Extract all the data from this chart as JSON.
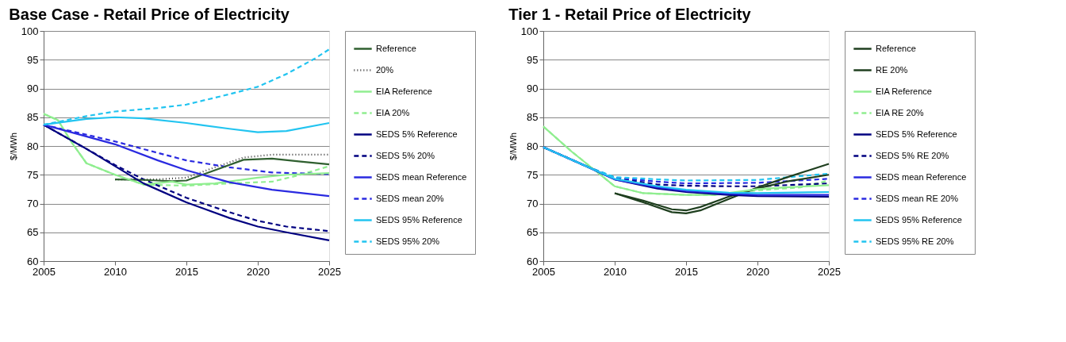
{
  "chart_data": [
    {
      "type": "line",
      "title": "Base Case - Retail Price of Electricity",
      "ylabel": "$/MWh",
      "xlim": [
        2005,
        2025
      ],
      "xticks": [
        2005,
        2010,
        2015,
        2020,
        2025
      ],
      "ylim": [
        60,
        100
      ],
      "yticks": [
        60,
        65,
        70,
        75,
        80,
        85,
        90,
        95,
        100
      ],
      "grid": "y",
      "legend": "right",
      "series": [
        {
          "name": "Reference",
          "color": "#2f5f2f",
          "line_style": "solid",
          "x": [
            2010,
            2012,
            2014,
            2015,
            2017,
            2019,
            2021,
            2023,
            2025
          ],
          "values": [
            74.2,
            74.1,
            73.9,
            74.0,
            75.8,
            77.6,
            77.8,
            77.3,
            76.8
          ]
        },
        {
          "name": "20%",
          "color": "#404040",
          "line_style": "dotted",
          "x": [
            2010,
            2013,
            2015,
            2017,
            2019,
            2021,
            2023,
            2025
          ],
          "values": [
            74.2,
            74.2,
            74.5,
            76.3,
            78.0,
            78.5,
            78.5,
            78.5
          ]
        },
        {
          "name": "EIA Reference",
          "color": "#90ee90",
          "line_style": "solid",
          "x": [
            2005,
            2006,
            2007,
            2008,
            2010,
            2012,
            2014,
            2015,
            2017,
            2020,
            2022,
            2025
          ],
          "values": [
            85.6,
            84.5,
            80.5,
            77.0,
            75.0,
            73.3,
            73.8,
            73.3,
            73.5,
            74.5,
            75.0,
            75.3
          ]
        },
        {
          "name": "EIA 20%",
          "color": "#90ee90",
          "line_style": "dashed",
          "x": [
            2005,
            2006,
            2007,
            2008,
            2010,
            2012,
            2015,
            2018,
            2021,
            2023,
            2025
          ],
          "values": [
            85.6,
            84.5,
            80.5,
            77.0,
            75.0,
            73.3,
            73.1,
            73.5,
            73.8,
            75.0,
            76.5
          ]
        },
        {
          "name": "SEDS 5% Reference",
          "color": "#000080",
          "line_style": "solid",
          "x": [
            2005,
            2008,
            2010,
            2012,
            2015,
            2018,
            2020,
            2022,
            2025
          ],
          "values": [
            83.7,
            79.5,
            76.5,
            73.5,
            70.2,
            67.5,
            66.0,
            65.0,
            63.6
          ]
        },
        {
          "name": "SEDS 5% 20%",
          "color": "#000080",
          "line_style": "dashed",
          "x": [
            2005,
            2010,
            2012,
            2015,
            2018,
            2020,
            2022,
            2025
          ],
          "values": [
            83.7,
            76.7,
            74.2,
            71.0,
            68.5,
            67.0,
            66.0,
            65.2
          ]
        },
        {
          "name": "SEDS mean Reference",
          "color": "#2a2ae0",
          "line_style": "solid",
          "x": [
            2005,
            2010,
            2013,
            2015,
            2018,
            2021,
            2025
          ],
          "values": [
            83.7,
            80.3,
            77.5,
            75.8,
            73.7,
            72.4,
            71.3
          ]
        },
        {
          "name": "SEDS mean 20%",
          "color": "#2a2ae0",
          "line_style": "dashed",
          "x": [
            2005,
            2010,
            2013,
            2015,
            2018,
            2021,
            2025
          ],
          "values": [
            83.7,
            80.8,
            78.8,
            77.5,
            76.3,
            75.4,
            75.1
          ]
        },
        {
          "name": "SEDS 95% Reference",
          "color": "#22c4f0",
          "line_style": "solid",
          "x": [
            2005,
            2008,
            2010,
            2012,
            2015,
            2018,
            2020,
            2022,
            2025
          ],
          "values": [
            83.7,
            84.7,
            85.0,
            84.8,
            84.0,
            83.0,
            82.4,
            82.6,
            84.0
          ]
        },
        {
          "name": "SEDS 95% 20%",
          "color": "#22c4f0",
          "line_style": "dashed",
          "x": [
            2005,
            2008,
            2010,
            2013,
            2015,
            2018,
            2020,
            2022,
            2024,
            2025
          ],
          "values": [
            83.7,
            85.2,
            86.0,
            86.6,
            87.2,
            89.0,
            90.3,
            92.5,
            95.2,
            96.8
          ]
        }
      ]
    },
    {
      "type": "line",
      "title": "Tier 1 - Retail Price of Electricity",
      "ylabel": "$/MWh",
      "xlim": [
        2005,
        2025
      ],
      "xticks": [
        2005,
        2010,
        2015,
        2020,
        2025
      ],
      "ylim": [
        60,
        100
      ],
      "yticks": [
        60,
        65,
        70,
        75,
        80,
        85,
        90,
        95,
        100
      ],
      "grid": "y",
      "legend": "right",
      "series": [
        {
          "name": "Reference",
          "color": "#1f3f1f",
          "line_style": "solid",
          "x": [
            2010,
            2012,
            2014,
            2015,
            2016,
            2018,
            2020,
            2022,
            2025
          ],
          "values": [
            71.8,
            70.5,
            69.0,
            68.8,
            69.4,
            71.2,
            72.6,
            73.8,
            75.0
          ]
        },
        {
          "name": "RE 20%",
          "color": "#1f3f1f",
          "line_style": "solid",
          "x": [
            2010,
            2012,
            2014,
            2015,
            2016,
            2018,
            2020,
            2022,
            2025
          ],
          "values": [
            71.8,
            70.2,
            68.5,
            68.3,
            68.8,
            70.8,
            72.8,
            74.5,
            76.9
          ]
        },
        {
          "name": "EIA Reference",
          "color": "#90ee90",
          "line_style": "solid",
          "x": [
            2005,
            2007,
            2009,
            2010,
            2012,
            2015,
            2017,
            2020,
            2022,
            2025
          ],
          "values": [
            83.4,
            79.0,
            75.0,
            73.0,
            71.8,
            71.5,
            71.5,
            72.5,
            72.8,
            73.2
          ]
        },
        {
          "name": "EIA RE 20%",
          "color": "#90ee90",
          "line_style": "dashed",
          "x": [
            2005,
            2007,
            2009,
            2010,
            2012,
            2015,
            2017,
            2020,
            2023,
            2025
          ],
          "values": [
            83.4,
            79.0,
            75.0,
            73.0,
            71.8,
            71.5,
            71.5,
            72.3,
            72.8,
            74.0
          ]
        },
        {
          "name": "SEDS 5% Reference",
          "color": "#000080",
          "line_style": "solid",
          "x": [
            2005,
            2008,
            2010,
            2013,
            2015,
            2018,
            2020,
            2025
          ],
          "values": [
            79.8,
            76.5,
            74.2,
            72.6,
            72.0,
            71.5,
            71.3,
            71.2
          ]
        },
        {
          "name": "SEDS 5% RE 20%",
          "color": "#000080",
          "line_style": "dashed",
          "x": [
            2005,
            2008,
            2010,
            2013,
            2015,
            2018,
            2020,
            2025
          ],
          "values": [
            79.8,
            76.5,
            74.5,
            73.3,
            73.1,
            73.0,
            73.0,
            73.5
          ]
        },
        {
          "name": "SEDS mean Reference",
          "color": "#2a2ae0",
          "line_style": "solid",
          "x": [
            2005,
            2008,
            2010,
            2013,
            2015,
            2018,
            2020,
            2025
          ],
          "values": [
            79.8,
            76.5,
            74.2,
            72.8,
            72.2,
            71.7,
            71.5,
            71.5
          ]
        },
        {
          "name": "SEDS mean RE 20%",
          "color": "#2a2ae0",
          "line_style": "dashed",
          "x": [
            2005,
            2008,
            2010,
            2013,
            2015,
            2020,
            2025
          ],
          "values": [
            79.8,
            76.5,
            74.5,
            73.8,
            73.5,
            73.6,
            74.3
          ]
        },
        {
          "name": "SEDS 95% Reference",
          "color": "#22c4f0",
          "line_style": "solid",
          "x": [
            2005,
            2008,
            2010,
            2013,
            2015,
            2018,
            2020,
            2025
          ],
          "values": [
            79.8,
            76.5,
            74.3,
            73.0,
            72.4,
            71.9,
            71.8,
            72.0
          ]
        },
        {
          "name": "SEDS 95% RE 20%",
          "color": "#22c4f0",
          "line_style": "dashed",
          "x": [
            2005,
            2008,
            2010,
            2013,
            2015,
            2020,
            2025
          ],
          "values": [
            79.8,
            76.5,
            74.6,
            74.2,
            74.0,
            74.1,
            75.2
          ]
        }
      ]
    }
  ]
}
